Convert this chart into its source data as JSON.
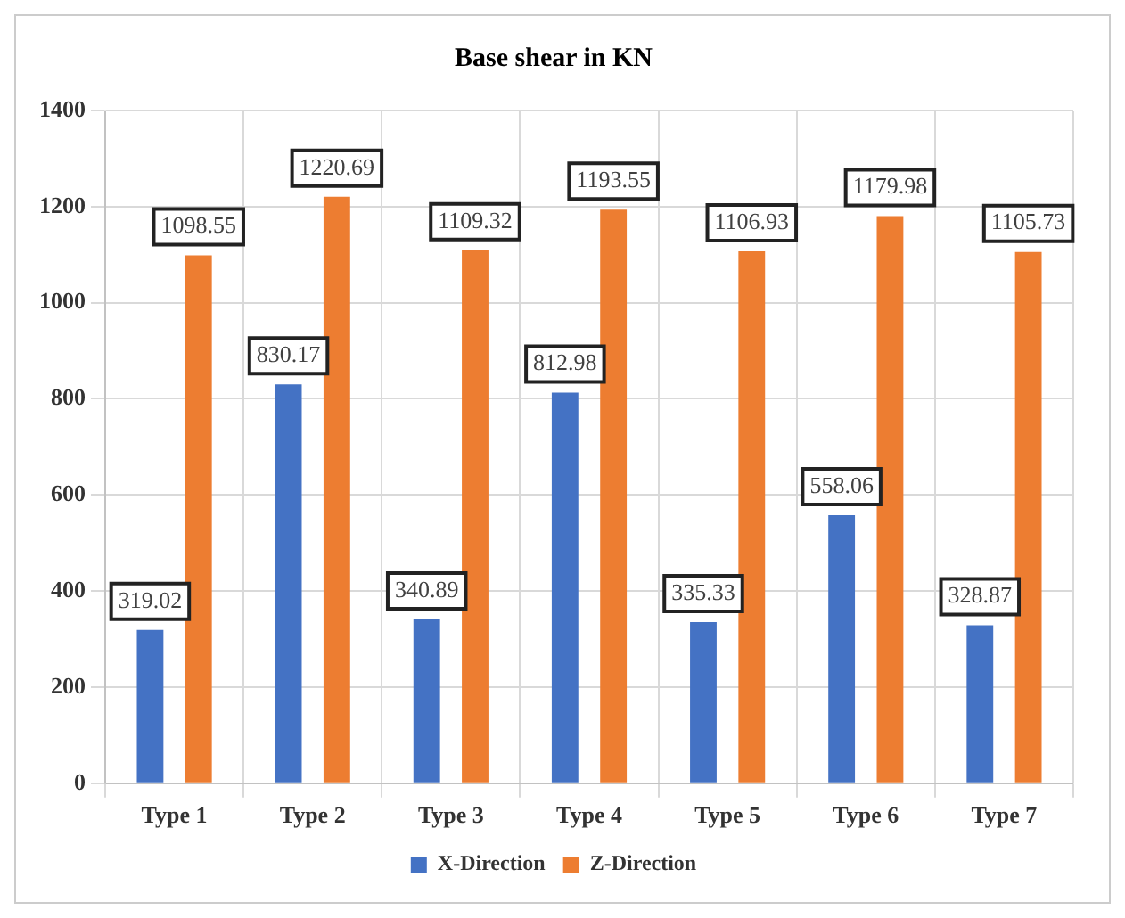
{
  "chart_data": {
    "type": "bar",
    "title": "Base shear in KN",
    "categories": [
      "Type 1",
      "Type 2",
      "Type 3",
      "Type 4",
      "Type 5",
      "Type 6",
      "Type 7"
    ],
    "series": [
      {
        "name": "X-Direction",
        "color": "#4472c4",
        "values": [
          319.02,
          830.17,
          340.89,
          812.98,
          335.33,
          558.06,
          328.87
        ]
      },
      {
        "name": "Z-Direction",
        "color": "#ed7d31",
        "values": [
          1098.55,
          1220.69,
          1109.32,
          1193.55,
          1106.93,
          1179.98,
          1105.73
        ]
      }
    ],
    "ylim": [
      0,
      1400
    ],
    "yticks": [
      0,
      200,
      400,
      600,
      800,
      1000,
      1200,
      1400
    ],
    "grid": true,
    "legend": "bottom",
    "data_labels": true
  }
}
